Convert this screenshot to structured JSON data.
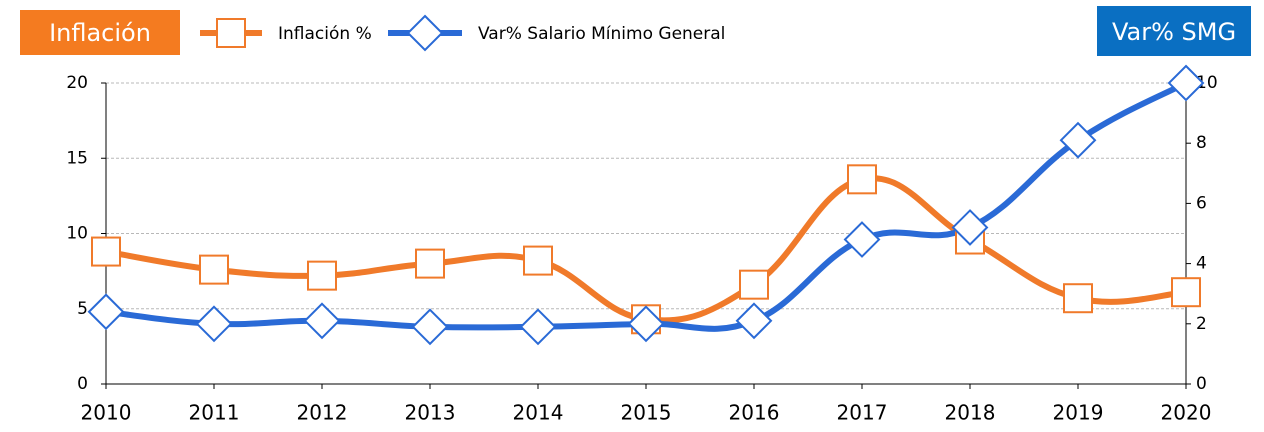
{
  "chart_data": {
    "type": "line",
    "annotations": [
      "Inflación",
      "Var% SMG"
    ],
    "categories": [
      "2010",
      "2011",
      "2012",
      "2013",
      "2014",
      "2015",
      "2016",
      "2017",
      "2018",
      "2019",
      "2020"
    ],
    "series": [
      {
        "name": "Inflación %",
        "color": "#f07a2a",
        "axis": "y",
        "marker": "square",
        "values": [
          8.8,
          7.6,
          7.2,
          8.0,
          8.2,
          4.3,
          6.6,
          13.6,
          9.6,
          5.7,
          6.1
        ]
      },
      {
        "name": "Var% Salario Mínimo General",
        "color": "#2a6ad6",
        "axis": "y2",
        "marker": "diamond",
        "values": [
          2.4,
          2.0,
          2.1,
          1.9,
          1.9,
          2.0,
          2.1,
          4.8,
          5.2,
          8.1,
          10.0
        ]
      }
    ],
    "ylim": [
      0,
      20
    ],
    "yticks": [
      0,
      5,
      10,
      15,
      20
    ],
    "y2lim": [
      0,
      10
    ],
    "y2ticks": [
      0,
      2,
      4,
      6,
      8,
      10
    ],
    "grid": true
  }
}
